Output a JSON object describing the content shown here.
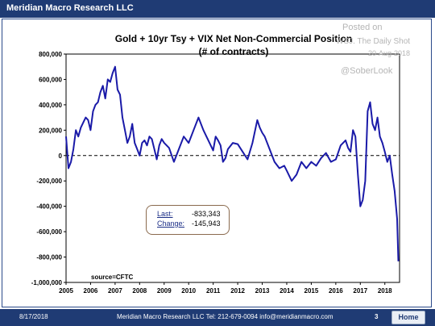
{
  "header": {
    "brand": "Meridian Macro Research LLC"
  },
  "watermark": {
    "posted_on": "Posted on",
    "source": "WSJ. The Daily Shot",
    "date": "20-Aug-2018",
    "handle": "@SoberLook"
  },
  "footer": {
    "date": "8/17/2018",
    "contact": "Meridian Macro Research LLC   Tel: 212-679-0094   info@meridianmacro.com",
    "page": "3",
    "home_label": "Home"
  },
  "infobox": {
    "last_label": "Last:",
    "last_value": "-833,343",
    "change_label": "Change:",
    "change_value": "-145,943"
  },
  "source_note": "source=CFTC",
  "colors": {
    "series": "#1a1aa8",
    "frame": "#1f3b74"
  },
  "chart_data": {
    "type": "line",
    "title": "Gold + 10yr Tsy + VIX  Net Non-Commercial Position",
    "subtitle": "(# of contracts)",
    "xlabel": "",
    "ylabel": "",
    "ylim": [
      -1000000,
      800000
    ],
    "xlim": [
      2005,
      2018.6
    ],
    "y_ticks": [
      "800,000",
      "600,000",
      "400,000",
      "200,000",
      "0",
      "-200,000",
      "-400,000",
      "-600,000",
      "-800,000",
      "-1,000,000"
    ],
    "x_ticks": [
      "2005",
      "2006",
      "2007",
      "2008",
      "2009",
      "2010",
      "2011",
      "2012",
      "2013",
      "2014",
      "2015",
      "2016",
      "2017",
      "2018"
    ],
    "zero_line": "dashed",
    "grid": false,
    "series": [
      {
        "x": [
          2005.0,
          2005.1,
          2005.2,
          2005.3,
          2005.4,
          2005.5,
          2005.6,
          2005.7,
          2005.8,
          2005.9,
          2006.0,
          2006.1,
          2006.2,
          2006.3,
          2006.4,
          2006.5,
          2006.6,
          2006.7,
          2006.8,
          2006.9,
          2007.0,
          2007.1,
          2007.2,
          2007.3,
          2007.4,
          2007.5,
          2007.6,
          2007.7,
          2007.8,
          2007.9,
          2008.0,
          2008.1,
          2008.2,
          2008.3,
          2008.4,
          2008.5,
          2008.6,
          2008.7,
          2008.8,
          2008.9,
          2009.0,
          2009.2,
          2009.4,
          2009.6,
          2009.8,
          2010.0,
          2010.2,
          2010.4,
          2010.6,
          2010.8,
          2011.0,
          2011.1,
          2011.2,
          2011.3,
          2011.4,
          2011.5,
          2011.6,
          2011.8,
          2012.0,
          2012.2,
          2012.4,
          2012.6,
          2012.8,
          2012.9,
          2013.0,
          2013.1,
          2013.3,
          2013.5,
          2013.7,
          2013.9,
          2014.0,
          2014.2,
          2014.4,
          2014.6,
          2014.8,
          2015.0,
          2015.2,
          2015.4,
          2015.6,
          2015.8,
          2016.0,
          2016.2,
          2016.4,
          2016.5,
          2016.6,
          2016.7,
          2016.8,
          2016.9,
          2017.0,
          2017.1,
          2017.2,
          2017.3,
          2017.4,
          2017.5,
          2017.6,
          2017.7,
          2017.8,
          2017.9,
          2018.0,
          2018.1,
          2018.2,
          2018.3,
          2018.4,
          2018.5,
          2018.55
        ],
        "values": [
          150000,
          -100000,
          -50000,
          50000,
          200000,
          150000,
          220000,
          260000,
          300000,
          280000,
          200000,
          350000,
          400000,
          420000,
          500000,
          550000,
          450000,
          600000,
          580000,
          650000,
          700000,
          520000,
          480000,
          300000,
          200000,
          100000,
          150000,
          250000,
          100000,
          50000,
          0,
          100000,
          120000,
          80000,
          150000,
          130000,
          50000,
          -30000,
          80000,
          130000,
          100000,
          60000,
          -50000,
          50000,
          150000,
          100000,
          200000,
          300000,
          200000,
          120000,
          40000,
          150000,
          120000,
          80000,
          -50000,
          -20000,
          50000,
          100000,
          90000,
          30000,
          -30000,
          100000,
          280000,
          220000,
          180000,
          150000,
          50000,
          -50000,
          -100000,
          -80000,
          -120000,
          -200000,
          -150000,
          -50000,
          -100000,
          -50000,
          -80000,
          -20000,
          20000,
          -50000,
          -30000,
          80000,
          120000,
          60000,
          30000,
          200000,
          150000,
          -150000,
          -400000,
          -350000,
          -200000,
          350000,
          420000,
          250000,
          200000,
          300000,
          150000,
          100000,
          30000,
          -50000,
          0,
          -150000,
          -280000,
          -500000,
          -833343
        ]
      }
    ]
  }
}
